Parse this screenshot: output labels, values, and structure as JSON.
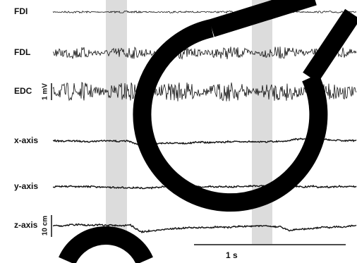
{
  "labels": [
    "FDI",
    "FDL",
    "EDC",
    "x-axis",
    "y-axis",
    "z-axis"
  ],
  "scale_bars": {
    "emg": "1 mV",
    "displacement": "10 cm",
    "time": "1 s"
  }
}
